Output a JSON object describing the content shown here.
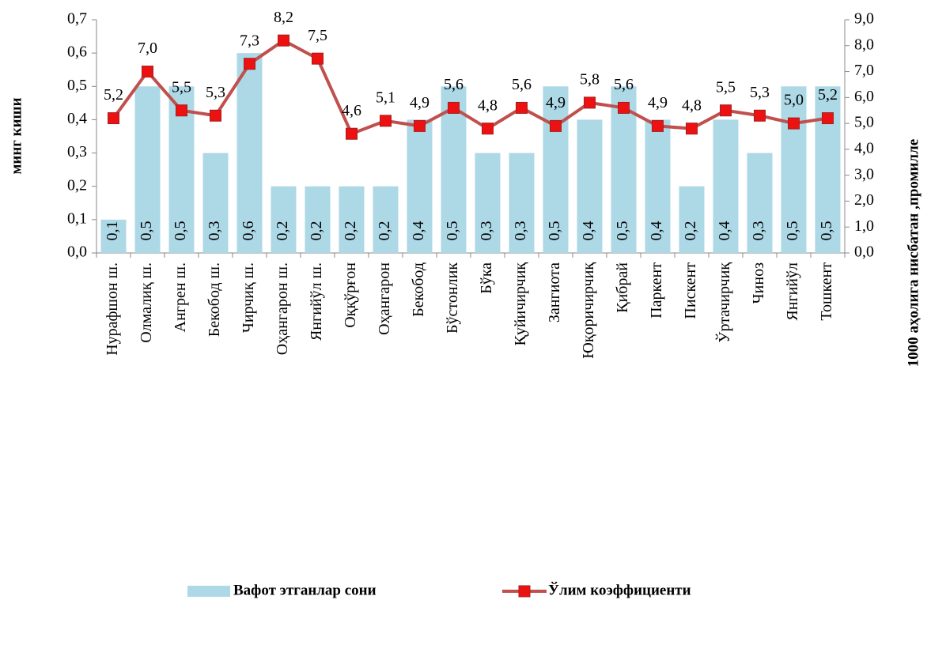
{
  "chart_data": {
    "type": "bar",
    "categories": [
      "Нурафшон ш.",
      "Олмалиқ ш.",
      "Ангрен ш.",
      "Бекобод ш.",
      "Чирчиқ ш.",
      "Оҳангарон ш.",
      "Янгийўл ш.",
      "Оққўрғон",
      "Оҳангарон",
      "Бекобод",
      "Бўстонлик",
      "Бўка",
      "Қуйичирчиқ",
      "Зангиота",
      "Юқоричирчиқ",
      "Қибрай",
      "Паркент",
      "Пискент",
      "Ўртачирчиқ",
      "Чиноз",
      "Янгийўл",
      "Тошкент"
    ],
    "series": [
      {
        "name": "Вафот этганлар сони",
        "type": "bar",
        "axis": "y",
        "color": "#add8e6",
        "values": [
          0.1,
          0.5,
          0.5,
          0.3,
          0.6,
          0.2,
          0.2,
          0.2,
          0.2,
          0.4,
          0.5,
          0.3,
          0.3,
          0.5,
          0.4,
          0.5,
          0.4,
          0.2,
          0.4,
          0.3,
          0.5,
          0.5
        ],
        "value_labels": [
          "0,1",
          "0,5",
          "0,5",
          "0,3",
          "0,6",
          "0,2",
          "0,2",
          "0,2",
          "0,2",
          "0,4",
          "0,5",
          "0,3",
          "0,3",
          "0,5",
          "0,4",
          "0,5",
          "0,4",
          "0,2",
          "0,4",
          "0,3",
          "0,5",
          "0,5"
        ]
      },
      {
        "name": "Ўлим коэффициенти",
        "type": "line",
        "axis": "y2",
        "color": "#c0504d",
        "marker_color": "#ee1111",
        "values": [
          5.2,
          7.0,
          5.5,
          5.3,
          7.3,
          8.2,
          7.5,
          4.6,
          5.1,
          4.9,
          5.6,
          4.8,
          5.6,
          4.9,
          5.8,
          5.6,
          4.9,
          4.8,
          5.5,
          5.3,
          5.0,
          5.2
        ],
        "value_labels": [
          "5,2",
          "7,0",
          "5,5",
          "5,3",
          "7,3",
          "8,2",
          "7,5",
          "4,6",
          "5,1",
          "4,9",
          "5,6",
          "4,8",
          "5,6",
          "4,9",
          "5,8",
          "5,6",
          "4,9",
          "4,8",
          "5,5",
          "5,3",
          "5,0",
          "5,2"
        ]
      }
    ],
    "y_label": "минг киши",
    "y2_label": "1000 аҳолига нисбатан ,промилле",
    "ylim": [
      0,
      0.7
    ],
    "yticks": [
      {
        "value": 0,
        "label": "0,0"
      },
      {
        "value": 0.1,
        "label": "0,1"
      },
      {
        "value": 0.2,
        "label": "0,2"
      },
      {
        "value": 0.3,
        "label": "0,3"
      },
      {
        "value": 0.4,
        "label": "0,4"
      },
      {
        "value": 0.5,
        "label": "0,5"
      },
      {
        "value": 0.6,
        "label": "0,6"
      },
      {
        "value": 0.7,
        "label": "0,7"
      }
    ],
    "y2lim": [
      0,
      9
    ],
    "y2ticks": [
      {
        "value": 0,
        "label": "0,0"
      },
      {
        "value": 1,
        "label": "1,0"
      },
      {
        "value": 2,
        "label": "2,0"
      },
      {
        "value": 3,
        "label": "3,0"
      },
      {
        "value": 4,
        "label": "4,0"
      },
      {
        "value": 5,
        "label": "5,0"
      },
      {
        "value": 6,
        "label": "6,0"
      },
      {
        "value": 7,
        "label": "7,0"
      },
      {
        "value": 8,
        "label": "8,0"
      },
      {
        "value": 9,
        "label": "9,0"
      }
    ],
    "legend": "bottom"
  }
}
